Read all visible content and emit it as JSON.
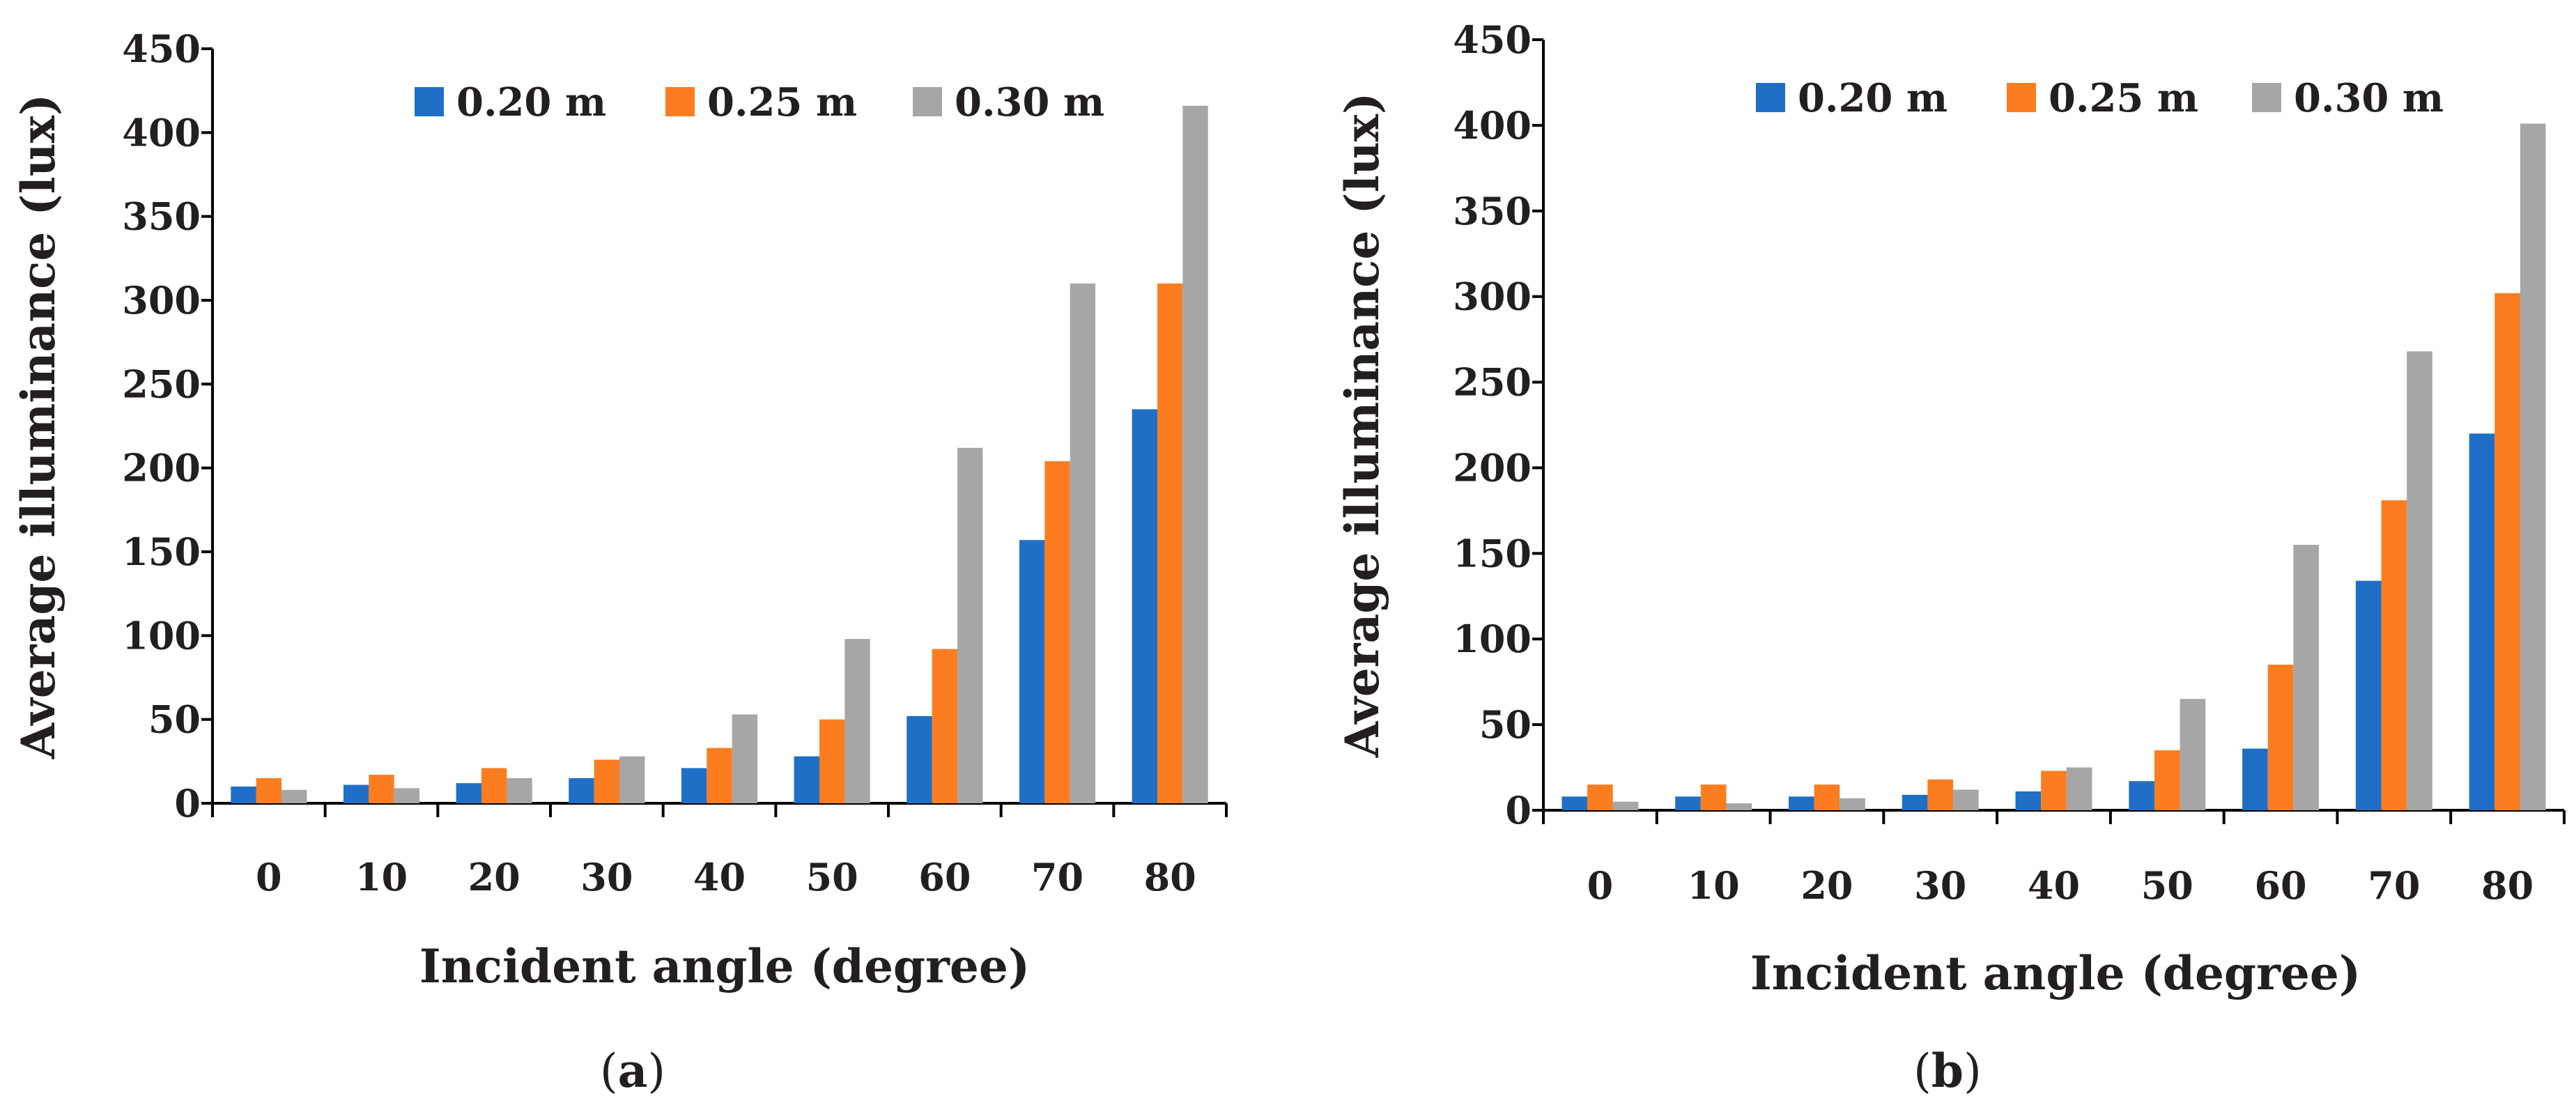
{
  "colors": {
    "s020": "#1f6fc6",
    "s025": "#fb7d20",
    "s030": "#a6a6a6",
    "axis": "#000000"
  },
  "chart_data": [
    {
      "type": "bar",
      "panel": "(a)",
      "panel_letter": "a",
      "xlabel": "Incident angle (degree)",
      "ylabel": "Average illuminance (lux)",
      "ylim": [
        0,
        450
      ],
      "yticks": [
        0,
        50,
        100,
        150,
        200,
        250,
        300,
        350,
        400,
        450
      ],
      "categories": [
        "0",
        "10",
        "20",
        "30",
        "40",
        "50",
        "60",
        "70",
        "80"
      ],
      "legend_position": "top-right",
      "series": [
        {
          "name": "0.20 m",
          "color": "#1f6fc6",
          "values": [
            10,
            11,
            12,
            15,
            21,
            28,
            52,
            157,
            235
          ]
        },
        {
          "name": "0.25 m",
          "color": "#fb7d20",
          "values": [
            15,
            17,
            21,
            26,
            33,
            50,
            92,
            204,
            310
          ]
        },
        {
          "name": "0.30 m",
          "color": "#a6a6a6",
          "values": [
            8,
            9,
            15,
            28,
            53,
            98,
            212,
            310,
            416
          ]
        }
      ]
    },
    {
      "type": "bar",
      "panel": "(b)",
      "panel_letter": "b",
      "xlabel": "Incident angle (degree)",
      "ylabel": "Average illuminance (lux)",
      "ylim": [
        0,
        450
      ],
      "yticks": [
        0,
        50,
        100,
        150,
        200,
        250,
        300,
        350,
        400,
        450
      ],
      "categories": [
        "0",
        "10",
        "20",
        "30",
        "40",
        "50",
        "60",
        "70",
        "80"
      ],
      "legend_position": "top-right",
      "series": [
        {
          "name": "0.20 m",
          "color": "#1f6fc6",
          "values": [
            8,
            8,
            8,
            9,
            11,
            17,
            36,
            134,
            220
          ]
        },
        {
          "name": "0.25 m",
          "color": "#fb7d20",
          "values": [
            15,
            15,
            15,
            18,
            23,
            35,
            85,
            181,
            302
          ]
        },
        {
          "name": "0.30 m",
          "color": "#a6a6a6",
          "values": [
            5,
            4,
            7,
            12,
            25,
            65,
            155,
            268,
            401
          ]
        }
      ]
    }
  ]
}
